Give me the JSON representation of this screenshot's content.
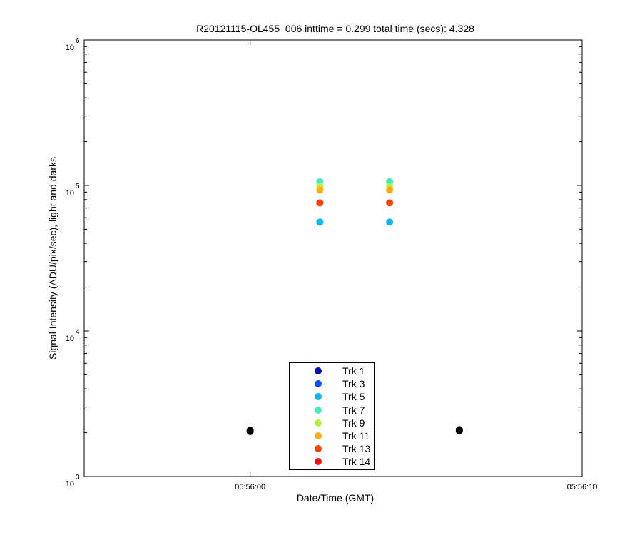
{
  "chart_data": {
    "type": "scatter",
    "title": "R20121115-OL455_006 inttime = 0.299 total time (secs): 4.328",
    "xlabel": "Date/Time (GMT)",
    "ylabel": "Signal Intensity (ADU/pix/sec), light and darks",
    "x_axis": {
      "type": "time",
      "range": [
        "05:55:55",
        "05:56:10"
      ],
      "tick_labels": [
        "05:56:00",
        "05:56:10"
      ]
    },
    "y_axis": {
      "scale": "log",
      "range": [
        1000,
        1000000
      ],
      "tick_labels": [
        {
          "base": "10",
          "exp": "3"
        },
        {
          "base": "10",
          "exp": "4"
        },
        {
          "base": "10",
          "exp": "5"
        },
        {
          "base": "10",
          "exp": "6"
        }
      ]
    },
    "grid": false,
    "legend_position": "bottom-center",
    "series": [
      {
        "name": "Trk 1",
        "color": "#0010b8",
        "x": [],
        "y": []
      },
      {
        "name": "Trk 3",
        "color": "#0050f0",
        "x": [],
        "y": []
      },
      {
        "name": "Trk 5",
        "color": "#00b8f0",
        "x": [
          "05:56:02.1",
          "05:56:04.2"
        ],
        "y": [
          56000,
          56000
        ]
      },
      {
        "name": "Trk 7",
        "color": "#40f0c0",
        "x": [
          "05:56:02.1",
          "05:56:04.2"
        ],
        "y": [
          106000,
          106000
        ]
      },
      {
        "name": "Trk 9",
        "color": "#b8f040",
        "x": [
          "05:56:02.1",
          "05:56:04.2"
        ],
        "y": [
          99000,
          99000
        ]
      },
      {
        "name": "Trk 11",
        "color": "#ffb000",
        "x": [
          "05:56:02.1",
          "05:56:04.2"
        ],
        "y": [
          93000,
          93000
        ]
      },
      {
        "name": "Trk 13",
        "color": "#ff4000",
        "x": [
          "05:56:02.1",
          "05:56:04.2"
        ],
        "y": [
          76000,
          76000
        ]
      },
      {
        "name": "Trk 14",
        "color": "#ff1010",
        "x": [],
        "y": []
      }
    ],
    "darks": {
      "color": "#000000",
      "x": [
        "05:56:00.0",
        "05:56:00.0",
        "05:56:06.3",
        "05:56:06.3"
      ],
      "y": [
        2040,
        2080,
        2060,
        2100
      ]
    }
  }
}
